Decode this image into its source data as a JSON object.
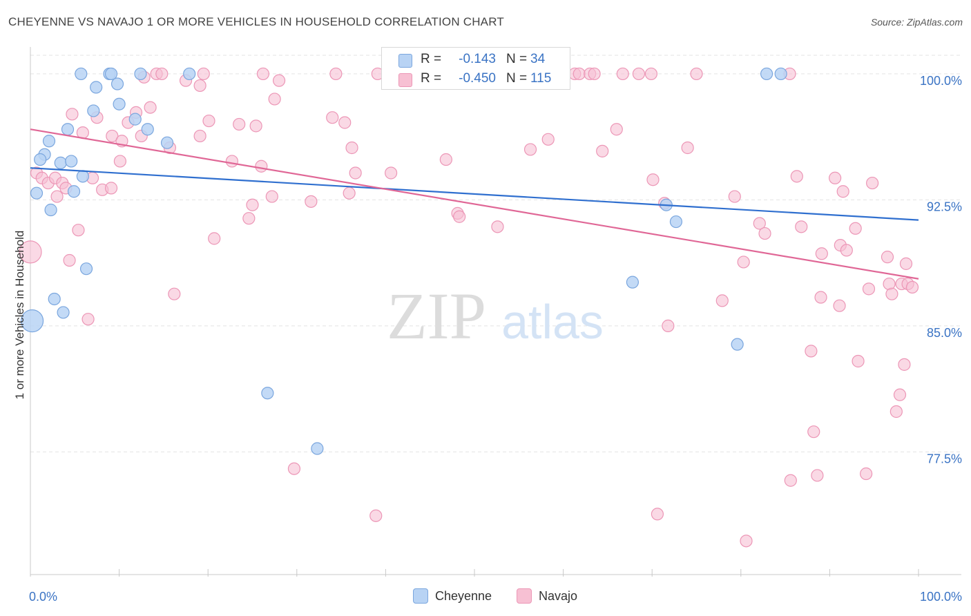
{
  "title": "CHEYENNE VS NAVAJO 1 OR MORE VEHICLES IN HOUSEHOLD CORRELATION CHART",
  "source": "Source: ZipAtlas.com",
  "watermark": {
    "part1": "ZIP",
    "part2": "atlas"
  },
  "colors": {
    "cheyenne_fill": "#b8d3f4",
    "cheyenne_stroke": "#7aa6de",
    "cheyenne_line": "#2f6fcf",
    "navajo_fill": "#f7c0d3",
    "navajo_stroke": "#ec96b6",
    "navajo_line": "#e06796",
    "axis_text": "#3a73c4",
    "grid": "#e3e3e3"
  },
  "stats": {
    "r_label": "R =",
    "n_label": "N =",
    "rows": [
      {
        "series": "cheyenne",
        "r": "-0.143",
        "n": "34"
      },
      {
        "series": "navajo",
        "r": "-0.450",
        "n": "115"
      }
    ]
  },
  "legend": [
    {
      "series": "cheyenne",
      "label": "Cheyenne"
    },
    {
      "series": "navajo",
      "label": "Navajo"
    }
  ],
  "chart_data": {
    "type": "scatter",
    "title": "CHEYENNE VS NAVAJO 1 OR MORE VEHICLES IN HOUSEHOLD CORRELATION CHART",
    "xlabel": "",
    "ylabel": "1 or more Vehicles in Household",
    "xlim": [
      0,
      100
    ],
    "ylim": [
      70.2,
      101.6
    ],
    "x_tick_labels": [
      {
        "value": 0,
        "label": "0.0%"
      },
      {
        "value": 100,
        "label": "100.0%"
      }
    ],
    "y_ticks": [
      {
        "value": 100,
        "label": "100.0%"
      },
      {
        "value": 92.5,
        "label": "92.5%"
      },
      {
        "value": 85,
        "label": "85.0%"
      },
      {
        "value": 77.5,
        "label": "77.5%"
      }
    ],
    "grid": true,
    "legend_position": "bottom",
    "series": [
      {
        "name": "Cheyenne",
        "trend": {
          "x": [
            0,
            100
          ],
          "y": [
            94.4,
            91.3
          ]
        },
        "points": [
          [
            5.7,
            100
          ],
          [
            8.9,
            100
          ],
          [
            9.1,
            100
          ],
          [
            12.4,
            100
          ],
          [
            17.9,
            100
          ],
          [
            82.9,
            100
          ],
          [
            84.5,
            100
          ],
          [
            7.4,
            99.2
          ],
          [
            9.8,
            99.4
          ],
          [
            10.0,
            98.2
          ],
          [
            7.1,
            97.8
          ],
          [
            11.8,
            97.3
          ],
          [
            4.2,
            96.7
          ],
          [
            13.2,
            96.7
          ],
          [
            2.1,
            96.0
          ],
          [
            15.4,
            95.9
          ],
          [
            1.6,
            95.2
          ],
          [
            1.1,
            94.9
          ],
          [
            3.4,
            94.7
          ],
          [
            4.6,
            94.8
          ],
          [
            5.9,
            93.9
          ],
          [
            0.7,
            92.9
          ],
          [
            4.9,
            93.0
          ],
          [
            2.3,
            91.9
          ],
          [
            71.6,
            92.2
          ],
          [
            72.7,
            91.2
          ],
          [
            6.3,
            88.4
          ],
          [
            67.8,
            87.6
          ],
          [
            2.7,
            86.6
          ],
          [
            3.7,
            85.8
          ],
          [
            0.2,
            85.3
          ],
          [
            79.6,
            83.9
          ],
          [
            26.7,
            81.0
          ],
          [
            32.3,
            77.7
          ]
        ]
      },
      {
        "name": "Navajo",
        "trend": {
          "x": [
            0,
            100
          ],
          "y": [
            96.7,
            87.8
          ]
        },
        "points": [
          [
            14.2,
            100
          ],
          [
            14.8,
            100
          ],
          [
            19.5,
            100
          ],
          [
            26.2,
            100
          ],
          [
            34.4,
            100
          ],
          [
            39.1,
            100
          ],
          [
            40.4,
            100
          ],
          [
            43.8,
            100
          ],
          [
            54.8,
            100
          ],
          [
            61.3,
            100
          ],
          [
            61.8,
            100
          ],
          [
            63.0,
            100
          ],
          [
            63.5,
            100
          ],
          [
            66.7,
            100
          ],
          [
            68.5,
            100
          ],
          [
            69.9,
            100
          ],
          [
            75.0,
            100
          ],
          [
            85.5,
            100
          ],
          [
            12.8,
            99.8
          ],
          [
            17.5,
            99.6
          ],
          [
            19.1,
            99.3
          ],
          [
            28.0,
            99.6
          ],
          [
            27.5,
            98.5
          ],
          [
            13.5,
            98.0
          ],
          [
            11.9,
            97.7
          ],
          [
            4.7,
            97.6
          ],
          [
            7.5,
            97.4
          ],
          [
            11.0,
            97.1
          ],
          [
            20.1,
            97.2
          ],
          [
            23.5,
            97.0
          ],
          [
            25.4,
            96.9
          ],
          [
            34.0,
            97.4
          ],
          [
            35.4,
            97.1
          ],
          [
            66.0,
            96.7
          ],
          [
            5.9,
            96.5
          ],
          [
            9.2,
            96.3
          ],
          [
            10.3,
            96.0
          ],
          [
            12.5,
            96.3
          ],
          [
            19.1,
            96.3
          ],
          [
            15.7,
            95.6
          ],
          [
            36.2,
            95.6
          ],
          [
            56.3,
            95.5
          ],
          [
            58.3,
            96.1
          ],
          [
            64.4,
            95.4
          ],
          [
            74.0,
            95.6
          ],
          [
            10.1,
            94.8
          ],
          [
            22.7,
            94.8
          ],
          [
            26.0,
            94.5
          ],
          [
            46.8,
            94.9
          ],
          [
            0.7,
            94.1
          ],
          [
            1.3,
            93.8
          ],
          [
            2.0,
            93.5
          ],
          [
            2.8,
            93.8
          ],
          [
            3.6,
            93.5
          ],
          [
            4.0,
            93.2
          ],
          [
            7.0,
            93.8
          ],
          [
            8.1,
            93.1
          ],
          [
            9.1,
            93.2
          ],
          [
            36.6,
            94.1
          ],
          [
            40.6,
            94.1
          ],
          [
            70.1,
            93.7
          ],
          [
            86.3,
            93.9
          ],
          [
            90.6,
            93.8
          ],
          [
            94.8,
            93.5
          ],
          [
            3.0,
            92.7
          ],
          [
            25.0,
            92.2
          ],
          [
            27.2,
            92.7
          ],
          [
            31.6,
            92.4
          ],
          [
            35.9,
            92.9
          ],
          [
            71.4,
            92.3
          ],
          [
            79.3,
            92.7
          ],
          [
            91.5,
            93.0
          ],
          [
            48.1,
            91.7
          ],
          [
            48.3,
            91.5
          ],
          [
            24.6,
            91.4
          ],
          [
            5.4,
            90.7
          ],
          [
            20.7,
            90.2
          ],
          [
            52.6,
            90.9
          ],
          [
            82.1,
            91.1
          ],
          [
            82.7,
            90.5
          ],
          [
            86.8,
            90.9
          ],
          [
            92.9,
            90.8
          ],
          [
            0.0,
            89.4
          ],
          [
            4.4,
            88.9
          ],
          [
            80.3,
            88.8
          ],
          [
            89.1,
            89.3
          ],
          [
            91.2,
            89.8
          ],
          [
            91.9,
            89.5
          ],
          [
            96.5,
            89.1
          ],
          [
            98.6,
            88.7
          ],
          [
            96.7,
            87.5
          ],
          [
            98.1,
            87.5
          ],
          [
            98.8,
            87.5
          ],
          [
            94.4,
            87.2
          ],
          [
            99.3,
            87.3
          ],
          [
            97.0,
            86.9
          ],
          [
            16.2,
            86.9
          ],
          [
            77.9,
            86.5
          ],
          [
            89.0,
            86.7
          ],
          [
            91.1,
            86.2
          ],
          [
            6.5,
            85.4
          ],
          [
            71.8,
            85.0
          ],
          [
            87.9,
            83.5
          ],
          [
            93.2,
            82.9
          ],
          [
            98.4,
            82.7
          ],
          [
            97.9,
            80.9
          ],
          [
            97.5,
            79.9
          ],
          [
            88.2,
            78.7
          ],
          [
            29.7,
            76.5
          ],
          [
            85.6,
            75.8
          ],
          [
            88.6,
            76.1
          ],
          [
            94.1,
            76.2
          ],
          [
            38.9,
            73.7
          ],
          [
            70.6,
            73.8
          ],
          [
            80.6,
            72.2
          ]
        ]
      }
    ]
  }
}
